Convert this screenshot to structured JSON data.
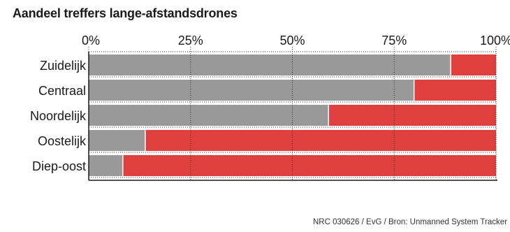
{
  "title": "Aandeel treffers lange-afstandsdrones",
  "source": "NRC 030626 / EvG / Bron: Unmanned System Tracker",
  "colors": {
    "series_a": "#999999",
    "series_b": "#e0403d"
  },
  "chart_data": {
    "type": "bar",
    "orientation": "horizontal",
    "stacked": true,
    "categories": [
      "Zuidelijk",
      "Centraal",
      "Noordelijk",
      "Oostelijk",
      "Diep-oost"
    ],
    "series": [
      {
        "values": [
          89,
          80,
          59,
          14,
          8.5
        ]
      },
      {
        "values": [
          11,
          20,
          41,
          86,
          91.5
        ]
      }
    ],
    "xlim": [
      0,
      100
    ],
    "xticks": [
      "0%",
      "25%",
      "50%",
      "75%",
      "100%"
    ],
    "grid": true
  }
}
